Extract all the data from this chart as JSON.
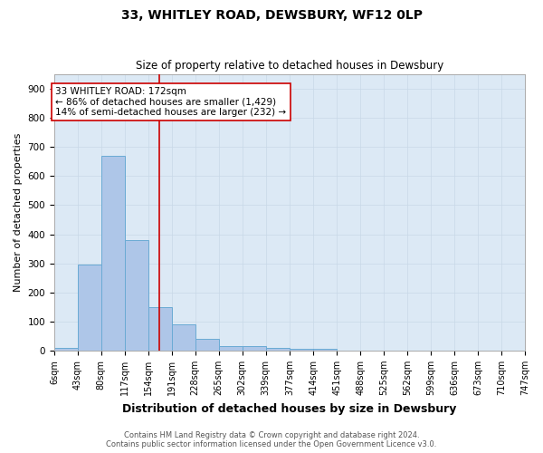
{
  "title": "33, WHITLEY ROAD, DEWSBURY, WF12 0LP",
  "subtitle": "Size of property relative to detached houses in Dewsbury",
  "xlabel": "Distribution of detached houses by size in Dewsbury",
  "ylabel": "Number of detached properties",
  "footnote1": "Contains HM Land Registry data © Crown copyright and database right 2024.",
  "footnote2": "Contains public sector information licensed under the Open Government Licence v3.0.",
  "bin_labels": [
    "6sqm",
    "43sqm",
    "80sqm",
    "117sqm",
    "154sqm",
    "191sqm",
    "228sqm",
    "265sqm",
    "302sqm",
    "339sqm",
    "377sqm",
    "414sqm",
    "451sqm",
    "488sqm",
    "525sqm",
    "562sqm",
    "599sqm",
    "636sqm",
    "673sqm",
    "710sqm",
    "747sqm"
  ],
  "bar_heights": [
    10,
    295,
    670,
    380,
    150,
    90,
    40,
    15,
    15,
    10,
    5,
    5,
    0,
    0,
    0,
    0,
    0,
    0,
    0,
    0
  ],
  "bar_color": "#aec6e8",
  "bar_edgecolor": "#6aaad4",
  "vline_x": 172,
  "vline_color": "#cc0000",
  "ylim": [
    0,
    950
  ],
  "annotation_text": "33 WHITLEY ROAD: 172sqm\n← 86% of detached houses are smaller (1,429)\n14% of semi-detached houses are larger (232) →",
  "annotation_box_color": "#cc0000",
  "bin_width": 37,
  "bg_color": "#dce9f5",
  "title_fontsize": 10,
  "subtitle_fontsize": 8.5,
  "xlabel_fontsize": 9,
  "ylabel_fontsize": 8,
  "tick_fontsize": 7,
  "annot_fontsize": 7.5,
  "footnote_fontsize": 6,
  "yticks": [
    0,
    100,
    200,
    300,
    400,
    500,
    600,
    700,
    800,
    900
  ]
}
